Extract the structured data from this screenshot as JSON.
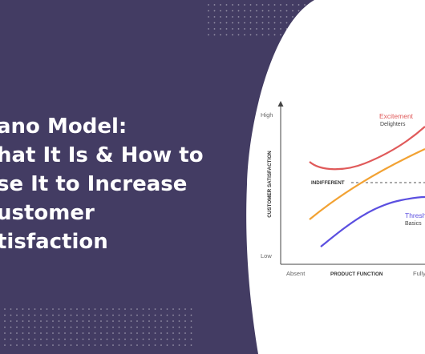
{
  "headline": {
    "lines": [
      "ano Model:",
      "hat It Is & How to",
      "se It to Increase",
      "ustomer",
      "tisfaction"
    ]
  },
  "colors": {
    "background": "#433c63",
    "panel": "#ffffff",
    "excitement": "#e05a5a",
    "performance": "#f2a233",
    "threshold": "#5b4fe0",
    "axis": "#444444"
  },
  "diagram": {
    "y_axis_title": "CUSTOMER SATISFACTION",
    "x_axis_title": "PRODUCT FUNCTION",
    "y_high": "High",
    "y_low": "Low",
    "x_start": "Absent",
    "x_end": "Fully",
    "indifferent_label": "INDIFFERENT",
    "excitement_title": "Excitement",
    "excitement_sub": "Delighters",
    "threshold_title": "Thresh",
    "threshold_sub": "Basics"
  }
}
